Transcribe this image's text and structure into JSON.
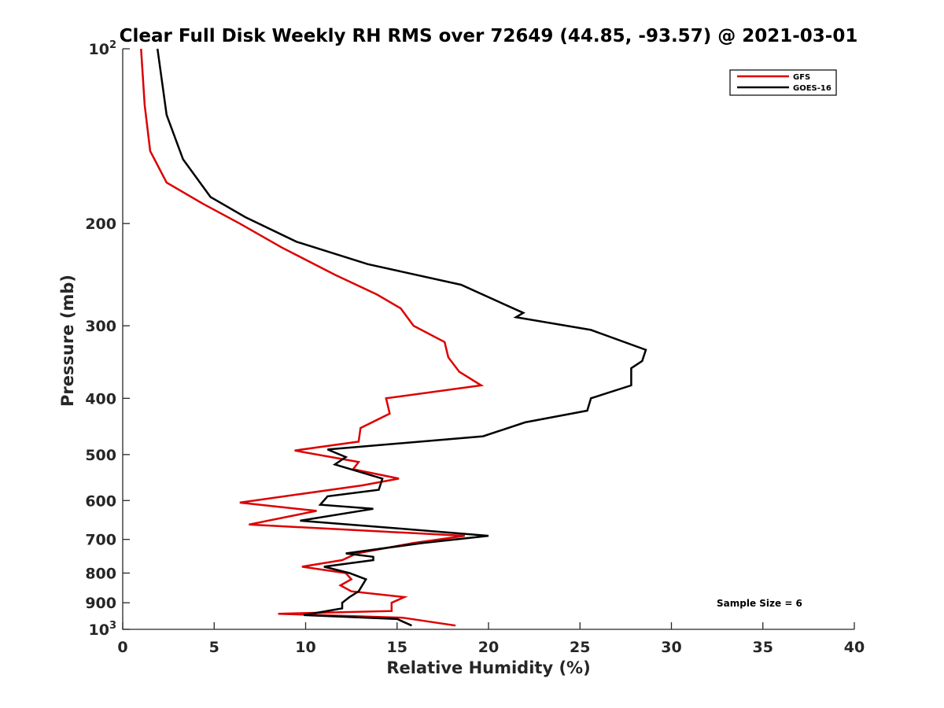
{
  "chart_data": {
    "type": "line",
    "title": "Clear Full Disk Weekly RH RMS over 72649 (44.85, -93.57) @ 2021-03-01",
    "xlabel": "Relative Humidity (%)",
    "ylabel": "Pressure (mb)",
    "xlim": [
      0,
      40
    ],
    "ylim": [
      100,
      1000
    ],
    "y_scale": "log",
    "y_reversed": true,
    "grid": false,
    "legend_position": "top-right",
    "x_ticks": [
      "0",
      "5",
      "10",
      "15",
      "20",
      "25",
      "30",
      "35",
      "40"
    ],
    "x_tick_values": [
      0,
      5,
      10,
      15,
      20,
      25,
      30,
      35,
      40
    ],
    "y_ticks": [
      {
        "value": 100,
        "base": "10",
        "exp": "2"
      },
      {
        "value": 200,
        "label": "200"
      },
      {
        "value": 300,
        "label": "300"
      },
      {
        "value": 400,
        "label": "400"
      },
      {
        "value": 500,
        "label": "500"
      },
      {
        "value": 600,
        "label": "600"
      },
      {
        "value": 700,
        "label": "700"
      },
      {
        "value": 800,
        "label": "800"
      },
      {
        "value": 900,
        "label": "900"
      },
      {
        "value": 1000,
        "base": "10",
        "exp": "3"
      }
    ],
    "annotation": "Sample Size = 6",
    "series": [
      {
        "name": "GFS",
        "color": "#dd0000",
        "points": [
          [
            1.0,
            100
          ],
          [
            1.2,
            125
          ],
          [
            1.5,
            150
          ],
          [
            2.4,
            170
          ],
          [
            4.4,
            185
          ],
          [
            6.4,
            200
          ],
          [
            8.7,
            220
          ],
          [
            11.6,
            245
          ],
          [
            13.9,
            265
          ],
          [
            15.2,
            280
          ],
          [
            15.9,
            300
          ],
          [
            17.6,
            320
          ],
          [
            17.8,
            340
          ],
          [
            18.4,
            360
          ],
          [
            19.6,
            380
          ],
          [
            14.4,
            400
          ],
          [
            14.6,
            425
          ],
          [
            13.0,
            450
          ],
          [
            12.9,
            475
          ],
          [
            9.4,
            492
          ],
          [
            12.9,
            515
          ],
          [
            12.6,
            530
          ],
          [
            15.1,
            550
          ],
          [
            13.1,
            565
          ],
          [
            6.4,
            605
          ],
          [
            10.6,
            625
          ],
          [
            6.9,
            660
          ],
          [
            18.7,
            690
          ],
          [
            15.9,
            710
          ],
          [
            12.8,
            740
          ],
          [
            12.0,
            760
          ],
          [
            9.8,
            780
          ],
          [
            12.2,
            800
          ],
          [
            12.5,
            820
          ],
          [
            11.9,
            840
          ],
          [
            12.5,
            860
          ],
          [
            15.4,
            880
          ],
          [
            14.7,
            900
          ],
          [
            14.7,
            930
          ],
          [
            8.5,
            940
          ],
          [
            15.3,
            955
          ],
          [
            18.2,
            985
          ]
        ]
      },
      {
        "name": "GOES-16",
        "color": "#000000",
        "points": [
          [
            1.9,
            100
          ],
          [
            2.4,
            130
          ],
          [
            3.3,
            155
          ],
          [
            4.8,
            180
          ],
          [
            6.7,
            195
          ],
          [
            9.5,
            215
          ],
          [
            13.4,
            235
          ],
          [
            18.5,
            255
          ],
          [
            21.9,
            285
          ],
          [
            21.5,
            290
          ],
          [
            25.6,
            305
          ],
          [
            28.6,
            330
          ],
          [
            28.4,
            345
          ],
          [
            27.8,
            355
          ],
          [
            27.8,
            380
          ],
          [
            25.6,
            400
          ],
          [
            25.4,
            420
          ],
          [
            22.0,
            440
          ],
          [
            19.7,
            465
          ],
          [
            11.2,
            490
          ],
          [
            12.2,
            505
          ],
          [
            11.6,
            520
          ],
          [
            14.2,
            550
          ],
          [
            14.0,
            575
          ],
          [
            11.2,
            590
          ],
          [
            10.8,
            610
          ],
          [
            13.7,
            620
          ],
          [
            9.7,
            650
          ],
          [
            15.0,
            670
          ],
          [
            20.0,
            690
          ],
          [
            16.4,
            710
          ],
          [
            12.2,
            740
          ],
          [
            13.7,
            750
          ],
          [
            13.7,
            760
          ],
          [
            11.0,
            780
          ],
          [
            12.4,
            800
          ],
          [
            13.3,
            820
          ],
          [
            12.9,
            860
          ],
          [
            12.4,
            880
          ],
          [
            12.0,
            900
          ],
          [
            12.0,
            920
          ],
          [
            9.9,
            945
          ],
          [
            15.0,
            960
          ],
          [
            15.8,
            985
          ]
        ]
      }
    ]
  }
}
